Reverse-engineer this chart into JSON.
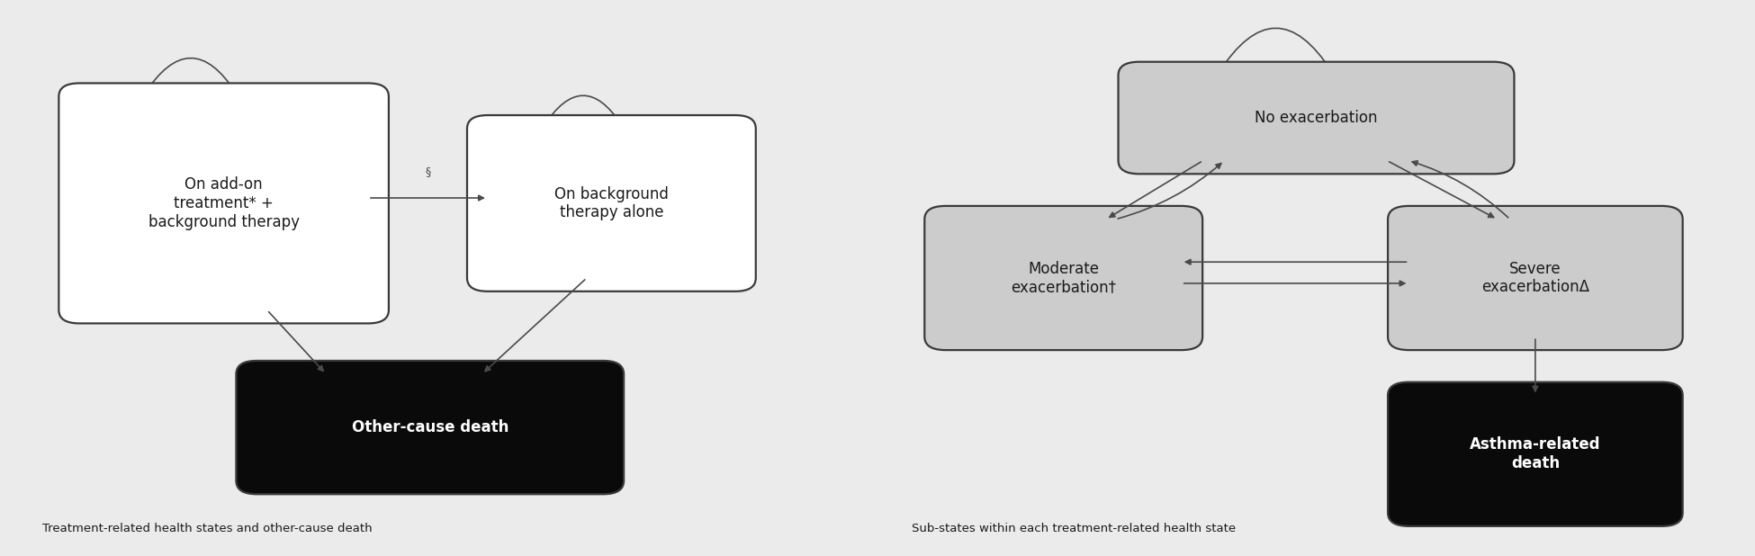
{
  "bg_color": "#ebebeb",
  "panel_bg": "#ebebeb",
  "white_box_color": "#ffffff",
  "gray_box_color": "#cccccc",
  "black_box_color": "#0a0a0a",
  "box_edge_color": "#3a3a3a",
  "arrow_color": "#4a4a4a",
  "text_color_dark": "#1a1a1a",
  "text_color_white": "#ffffff",
  "left_caption": "Treatment-related health states and other-cause death",
  "right_caption": "Sub-states within each treatment-related health state",
  "addon_label": "On add-on\ntreatment* +\nbackground therapy",
  "background_label": "On background\ntherapy alone",
  "death_label": "Other-cause death",
  "noexac_label": "No exacerbation",
  "moderate_label": "Moderate\nexacerbation†",
  "severe_label": "Severe\nexacerbationΔ",
  "asthma_death_label": "Asthma-related\ndeath",
  "section_symbol": "§"
}
